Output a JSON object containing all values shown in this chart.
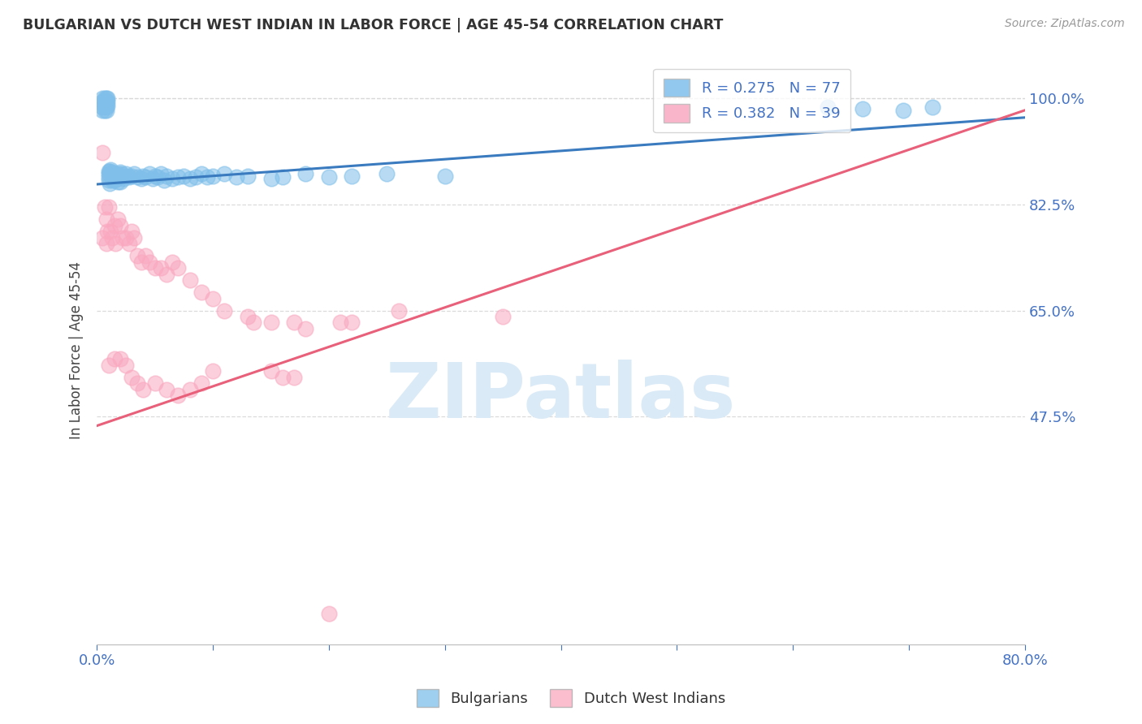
{
  "title": "BULGARIAN VS DUTCH WEST INDIAN IN LABOR FORCE | AGE 45-54 CORRELATION CHART",
  "source": "Source: ZipAtlas.com",
  "ylabel": "In Labor Force | Age 45-54",
  "xlim": [
    0.0,
    0.8
  ],
  "ylim": [
    0.1,
    1.07
  ],
  "ytick_positions": [
    1.0,
    0.825,
    0.65,
    0.475
  ],
  "yticklabels": [
    "100.0%",
    "82.5%",
    "65.0%",
    "47.5%"
  ],
  "watermark": "ZIPatlas",
  "legend_blue_r": "R = 0.275",
  "legend_blue_n": "N = 77",
  "legend_pink_r": "R = 0.382",
  "legend_pink_n": "N = 39",
  "blue_color": "#7fbfea",
  "pink_color": "#f9a8c0",
  "blue_line_color": "#3a7abf",
  "pink_line_color": "#e8607a",
  "blue_scatter_x": [
    0.005,
    0.005,
    0.005,
    0.005,
    0.005,
    0.007,
    0.007,
    0.007,
    0.008,
    0.008,
    0.008,
    0.008,
    0.008,
    0.009,
    0.009,
    0.009,
    0.01,
    0.01,
    0.01,
    0.01,
    0.011,
    0.011,
    0.012,
    0.012,
    0.013,
    0.013,
    0.014,
    0.015,
    0.015,
    0.016,
    0.017,
    0.018,
    0.018,
    0.019,
    0.02,
    0.02,
    0.021,
    0.022,
    0.023,
    0.025,
    0.026,
    0.028,
    0.03,
    0.032,
    0.035,
    0.038,
    0.04,
    0.042,
    0.045,
    0.048,
    0.05,
    0.052,
    0.055,
    0.058,
    0.06,
    0.065,
    0.07,
    0.075,
    0.08,
    0.085,
    0.09,
    0.095,
    0.1,
    0.11,
    0.12,
    0.13,
    0.15,
    0.16,
    0.18,
    0.2,
    0.22,
    0.25,
    0.3,
    0.63,
    0.66,
    0.695,
    0.72
  ],
  "blue_scatter_y": [
    1.0,
    0.995,
    0.99,
    0.985,
    0.98,
    1.0,
    0.995,
    0.98,
    1.0,
    0.995,
    0.99,
    0.985,
    0.98,
    1.0,
    0.995,
    0.988,
    0.88,
    0.875,
    0.87,
    0.865,
    0.88,
    0.86,
    0.882,
    0.875,
    0.878,
    0.865,
    0.872,
    0.875,
    0.865,
    0.87,
    0.868,
    0.875,
    0.862,
    0.87,
    0.878,
    0.862,
    0.875,
    0.87,
    0.868,
    0.875,
    0.872,
    0.87,
    0.872,
    0.875,
    0.87,
    0.868,
    0.872,
    0.87,
    0.875,
    0.868,
    0.872,
    0.87,
    0.875,
    0.865,
    0.872,
    0.868,
    0.87,
    0.872,
    0.868,
    0.87,
    0.875,
    0.87,
    0.872,
    0.875,
    0.87,
    0.872,
    0.868,
    0.87,
    0.875,
    0.87,
    0.872,
    0.875,
    0.872,
    0.985,
    0.983,
    0.98,
    0.985
  ],
  "pink_scatter_x": [
    0.005,
    0.005,
    0.007,
    0.008,
    0.008,
    0.009,
    0.01,
    0.012,
    0.013,
    0.015,
    0.016,
    0.018,
    0.02,
    0.022,
    0.025,
    0.028,
    0.03,
    0.032,
    0.035,
    0.038,
    0.042,
    0.045,
    0.05,
    0.055,
    0.06,
    0.065,
    0.07,
    0.08,
    0.09,
    0.1,
    0.11,
    0.13,
    0.15,
    0.17,
    0.18,
    0.21,
    0.26,
    0.35,
    0.135
  ],
  "pink_scatter_y": [
    0.91,
    0.77,
    0.82,
    0.8,
    0.76,
    0.78,
    0.82,
    0.78,
    0.77,
    0.79,
    0.76,
    0.8,
    0.79,
    0.77,
    0.77,
    0.76,
    0.78,
    0.77,
    0.74,
    0.73,
    0.74,
    0.73,
    0.72,
    0.72,
    0.71,
    0.73,
    0.72,
    0.7,
    0.68,
    0.67,
    0.65,
    0.64,
    0.63,
    0.63,
    0.62,
    0.63,
    0.65,
    0.64,
    0.63
  ],
  "pink_scatter_x2": [
    0.01,
    0.015,
    0.02,
    0.025,
    0.03,
    0.035,
    0.04,
    0.05,
    0.06,
    0.07,
    0.08,
    0.09,
    0.1,
    0.15,
    0.16,
    0.17,
    0.2,
    0.22
  ],
  "pink_scatter_y2": [
    0.56,
    0.57,
    0.57,
    0.56,
    0.54,
    0.53,
    0.52,
    0.53,
    0.52,
    0.51,
    0.52,
    0.53,
    0.55,
    0.55,
    0.54,
    0.54,
    0.15,
    0.63
  ],
  "blue_trendline_x": [
    0.0,
    0.8
  ],
  "blue_trendline_y": [
    0.858,
    0.968
  ],
  "pink_trendline_x": [
    0.0,
    0.8
  ],
  "pink_trendline_y": [
    0.46,
    0.98
  ],
  "grid_color": "#d8d8d8",
  "background_color": "#ffffff",
  "title_color": "#333333",
  "axis_color": "#4472c4",
  "watermark_color": "#daeaf7"
}
